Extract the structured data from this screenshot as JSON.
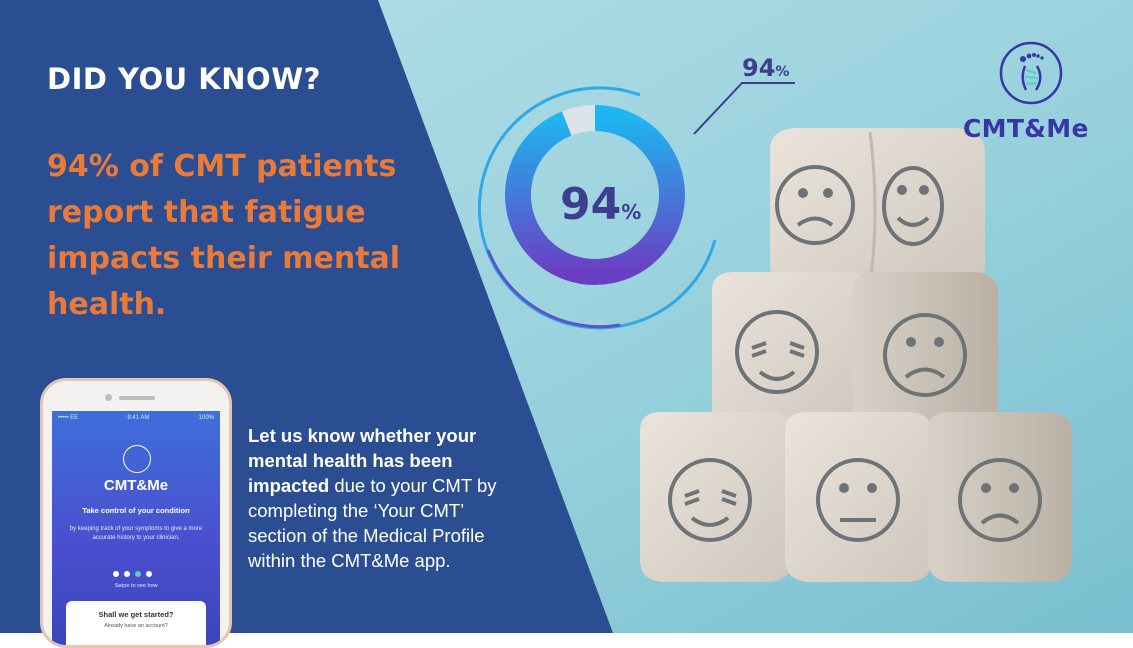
{
  "headline": "DID YOU KNOW?",
  "stat_text": "94% of CMT patients report that fatigue impacts their mental health.",
  "donut": {
    "value": 94,
    "center_label": "94",
    "center_unit": "%",
    "callout_label": "94",
    "callout_unit": "%",
    "colors": {
      "start": "#1eb5f0",
      "end": "#6a3fc4",
      "remainder": "#dde3ea"
    }
  },
  "body": {
    "bold_part": "Let us know whether your mental health has been impacted",
    "rest_part": " due to your CMT by completing the ‘Your CMT’ section of the Medical Profile within the CMT&Me app."
  },
  "brand": {
    "name": "CMT&Me",
    "logo_icon": "foot-dna-logo-icon"
  },
  "phone": {
    "status_left": "••••• EE",
    "status_time": "9:41 AM",
    "status_right": "100%",
    "app_name": "CMT&Me",
    "tagline": "Take control of your condition",
    "description": "by keeping track of your symptoms to give a more accurate history to your clinician,",
    "swipe_hint": "Swipe to see how",
    "card_title": "Shall we get started?",
    "card_subtitle": "Already have an account?"
  },
  "colors": {
    "navy": "#2b4e92",
    "sky": "#8fcfdc",
    "orange": "#e97a3a",
    "brand_purple": "#3a35a5"
  }
}
